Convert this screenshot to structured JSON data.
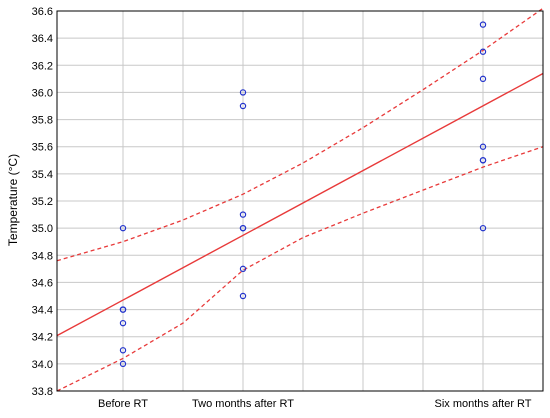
{
  "chart_data": {
    "type": "scatter",
    "ylabel": "Temperature (°C)",
    "ylim": [
      33.8,
      36.6
    ],
    "y_ticks": [
      33.8,
      34.0,
      34.2,
      34.4,
      34.6,
      34.8,
      35.0,
      35.2,
      35.4,
      35.6,
      35.8,
      36.0,
      36.2,
      36.4,
      36.6
    ],
    "x_categories": [
      "Before RT",
      "Two months after RT",
      "Six months after RT"
    ],
    "x_category_positions": [
      1,
      2,
      4
    ],
    "xlim": [
      0.45,
      4.5
    ],
    "x_gridlines": [
      1,
      1.5,
      2,
      2.5,
      3,
      3.5,
      4
    ],
    "grid": true,
    "points": [
      {
        "x": 1,
        "y": 35.0
      },
      {
        "x": 1,
        "y": 34.4
      },
      {
        "x": 1,
        "y": 34.4
      },
      {
        "x": 1,
        "y": 34.3
      },
      {
        "x": 1,
        "y": 34.1
      },
      {
        "x": 1,
        "y": 34.0
      },
      {
        "x": 2,
        "y": 36.0
      },
      {
        "x": 2,
        "y": 35.9
      },
      {
        "x": 2,
        "y": 35.1
      },
      {
        "x": 2,
        "y": 35.0
      },
      {
        "x": 2,
        "y": 35.0
      },
      {
        "x": 2,
        "y": 34.7
      },
      {
        "x": 2,
        "y": 34.5
      },
      {
        "x": 4,
        "y": 36.5
      },
      {
        "x": 4,
        "y": 36.3
      },
      {
        "x": 4,
        "y": 36.1
      },
      {
        "x": 4,
        "y": 35.6
      },
      {
        "x": 4,
        "y": 35.5
      },
      {
        "x": 4,
        "y": 35.5
      },
      {
        "x": 4,
        "y": 35.0
      }
    ],
    "regression": {
      "intercept": 33.993,
      "slope": 0.477
    },
    "ci_upper": [
      {
        "x": 0.45,
        "y": 34.76
      },
      {
        "x": 1,
        "y": 34.9
      },
      {
        "x": 1.5,
        "y": 35.06
      },
      {
        "x": 2,
        "y": 35.25
      },
      {
        "x": 2.5,
        "y": 35.48
      },
      {
        "x": 3,
        "y": 35.74
      },
      {
        "x": 3.5,
        "y": 36.02
      },
      {
        "x": 4,
        "y": 36.31
      },
      {
        "x": 4.5,
        "y": 36.62
      }
    ],
    "ci_lower": [
      {
        "x": 0.45,
        "y": 33.8
      },
      {
        "x": 1,
        "y": 34.04
      },
      {
        "x": 1.5,
        "y": 34.3
      },
      {
        "x": 2,
        "y": 34.69
      },
      {
        "x": 2.5,
        "y": 34.93
      },
      {
        "x": 3,
        "y": 35.11
      },
      {
        "x": 3.5,
        "y": 35.28
      },
      {
        "x": 4,
        "y": 35.45
      },
      {
        "x": 4.5,
        "y": 35.6
      }
    ],
    "colors": {
      "points": "#2233cc",
      "fit": "#e83a3a",
      "ci": "#e83a3a",
      "grid": "#c8c8c8",
      "axis": "#000000"
    }
  }
}
